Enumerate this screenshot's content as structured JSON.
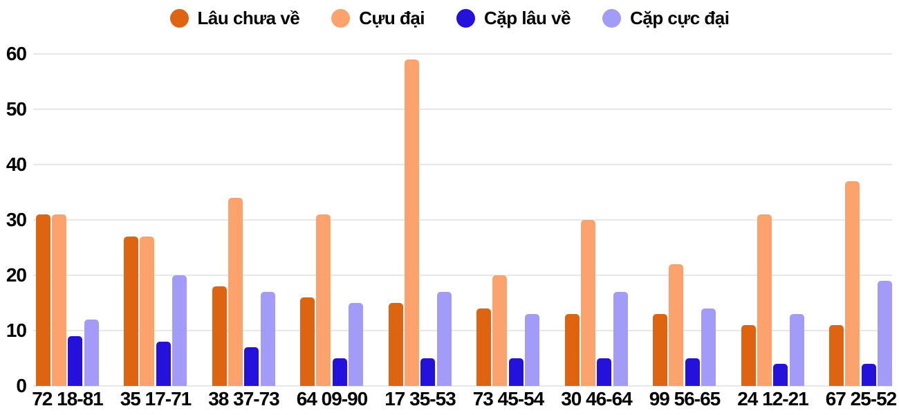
{
  "chart_data": {
    "type": "bar",
    "title": "",
    "xlabel": "",
    "ylabel": "",
    "categories": [
      "72 18-81",
      "35 17-71",
      "38 37-73",
      "64 09-90",
      "17 35-53",
      "73 45-54",
      "30 46-64",
      "99 56-65",
      "24 12-21",
      "67 25-52"
    ],
    "series": [
      {
        "name": "Lâu chưa về",
        "color": "#DE6411",
        "values": [
          31,
          27,
          18,
          16,
          15,
          14,
          13,
          13,
          11,
          11
        ]
      },
      {
        "name": "Cựu đại",
        "color": "#FCA26C",
        "values": [
          31,
          27,
          34,
          31,
          59,
          20,
          30,
          22,
          31,
          37
        ]
      },
      {
        "name": "Cặp lâu về",
        "color": "#2411DB",
        "values": [
          9,
          8,
          7,
          5,
          5,
          5,
          5,
          5,
          4,
          4
        ]
      },
      {
        "name": "Cặp cực đại",
        "color": "#A29BF8",
        "values": [
          12,
          20,
          17,
          15,
          17,
          13,
          17,
          14,
          13,
          19
        ]
      }
    ],
    "ylim": [
      0,
      60
    ],
    "yticks": [
      0,
      10,
      20,
      30,
      40,
      50,
      60
    ],
    "grid": true,
    "legend_position": "top",
    "colors": {
      "background": "#ffffff",
      "gridline": "#e7e7e7",
      "text": "#000000"
    }
  }
}
